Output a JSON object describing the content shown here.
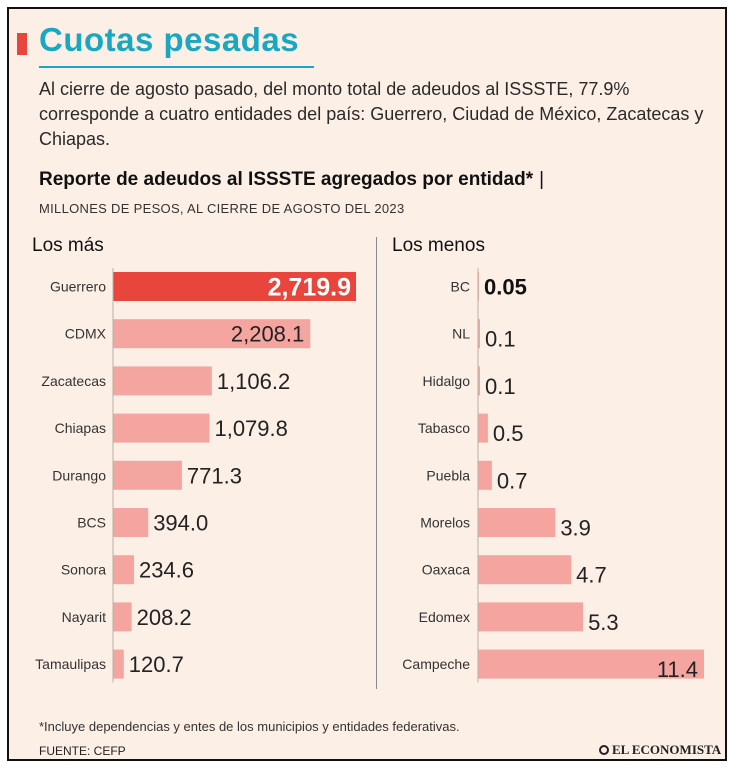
{
  "header": {
    "title": "Cuotas pesadas",
    "intro": "Al cierre de agosto pasado, del monto total de adeudos al ISSSTE, 77.9% corresponde a cuatro entidades del país: Guerrero, Ciudad de México, Zacatecas y Chiapas.",
    "accent_color": "#e8453c",
    "title_color": "#1aa7c2"
  },
  "chart_data": [
    {
      "type": "bar",
      "orientation": "horizontal",
      "title": "Reporte de adeudos al ISSSTE agregados por entidad*",
      "title_separator": "|",
      "subtitle": "MILLONES DE PESOS, AL CIERRE DE AGOSTO DEL 2023",
      "panel_title": "Los más",
      "categories": [
        "Guerrero",
        "CDMX",
        "Zacatecas",
        "Chiapas",
        "Durango",
        "BCS",
        "Sonora",
        "Nayarit",
        "Tamaulipas"
      ],
      "values": [
        2719.9,
        2208.1,
        1106.2,
        1079.8,
        771.3,
        394.0,
        234.6,
        208.2,
        120.7
      ],
      "labels": [
        "2,719.9",
        "2,208.1",
        "1,106.2",
        "1,079.8",
        "771.3",
        "394.0",
        "234.6",
        "208.2",
        "120.7"
      ],
      "highlight_index": 0,
      "xlim": [
        0,
        2719.9
      ],
      "bar_color": "#f4a5a0",
      "highlight_color": "#e8453c"
    },
    {
      "type": "bar",
      "orientation": "horizontal",
      "panel_title": "Los menos",
      "categories": [
        "BC",
        "NL",
        "Hidalgo",
        "Tabasco",
        "Puebla",
        "Morelos",
        "Oaxaca",
        "Edomex",
        "Campeche"
      ],
      "values": [
        0.05,
        0.1,
        0.1,
        0.5,
        0.7,
        3.9,
        4.7,
        5.3,
        11.4
      ],
      "labels": [
        "0.05",
        "0.1",
        "0.1",
        "0.5",
        "0.7",
        "3.9",
        "4.7",
        "5.3",
        "11.4"
      ],
      "highlight_index": 0,
      "xlim": [
        0,
        11.4
      ],
      "bar_color": "#f4a5a0",
      "highlight_color": "#e8453c"
    }
  ],
  "footer": {
    "footnote": "*Incluye dependencias y entes de los municipios y entidades federativas.",
    "source": "FUENTE: CEFP",
    "logo_text": "EL ECONOMISTA"
  }
}
